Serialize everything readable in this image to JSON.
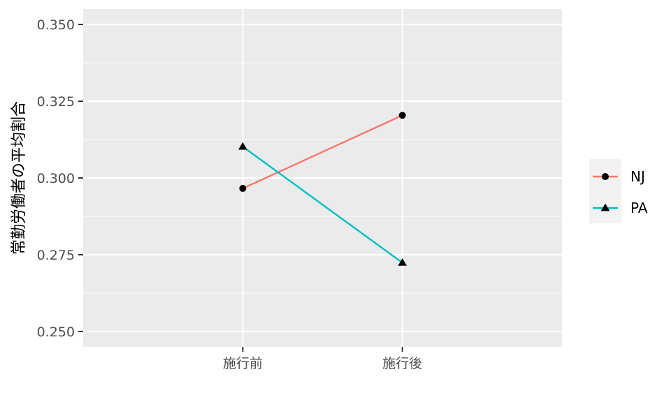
{
  "chart_data": {
    "type": "line",
    "title": "",
    "xlabel": "",
    "ylabel": "常勤労働者の平均割合",
    "categories": [
      "施行前",
      "施行後"
    ],
    "ylim": [
      0.245,
      0.355
    ],
    "y_ticks": [
      0.25,
      0.275,
      0.3,
      0.325,
      0.35
    ],
    "y_tick_labels": [
      "0.250",
      "0.275",
      "0.300",
      "0.325",
      "0.350"
    ],
    "grid": true,
    "legend_position": "right",
    "series": [
      {
        "name": "NJ",
        "values": [
          0.2966,
          0.3204
        ],
        "color": "#F8766D",
        "marker": "circle"
      },
      {
        "name": "PA",
        "values": [
          0.3102,
          0.2724
        ],
        "color": "#00BFC4",
        "marker": "triangle"
      }
    ]
  },
  "colors": {
    "panel_background": "#EBEBEB",
    "grid_line": "#FFFFFF",
    "legend_key_background": "#F2F2F2"
  }
}
